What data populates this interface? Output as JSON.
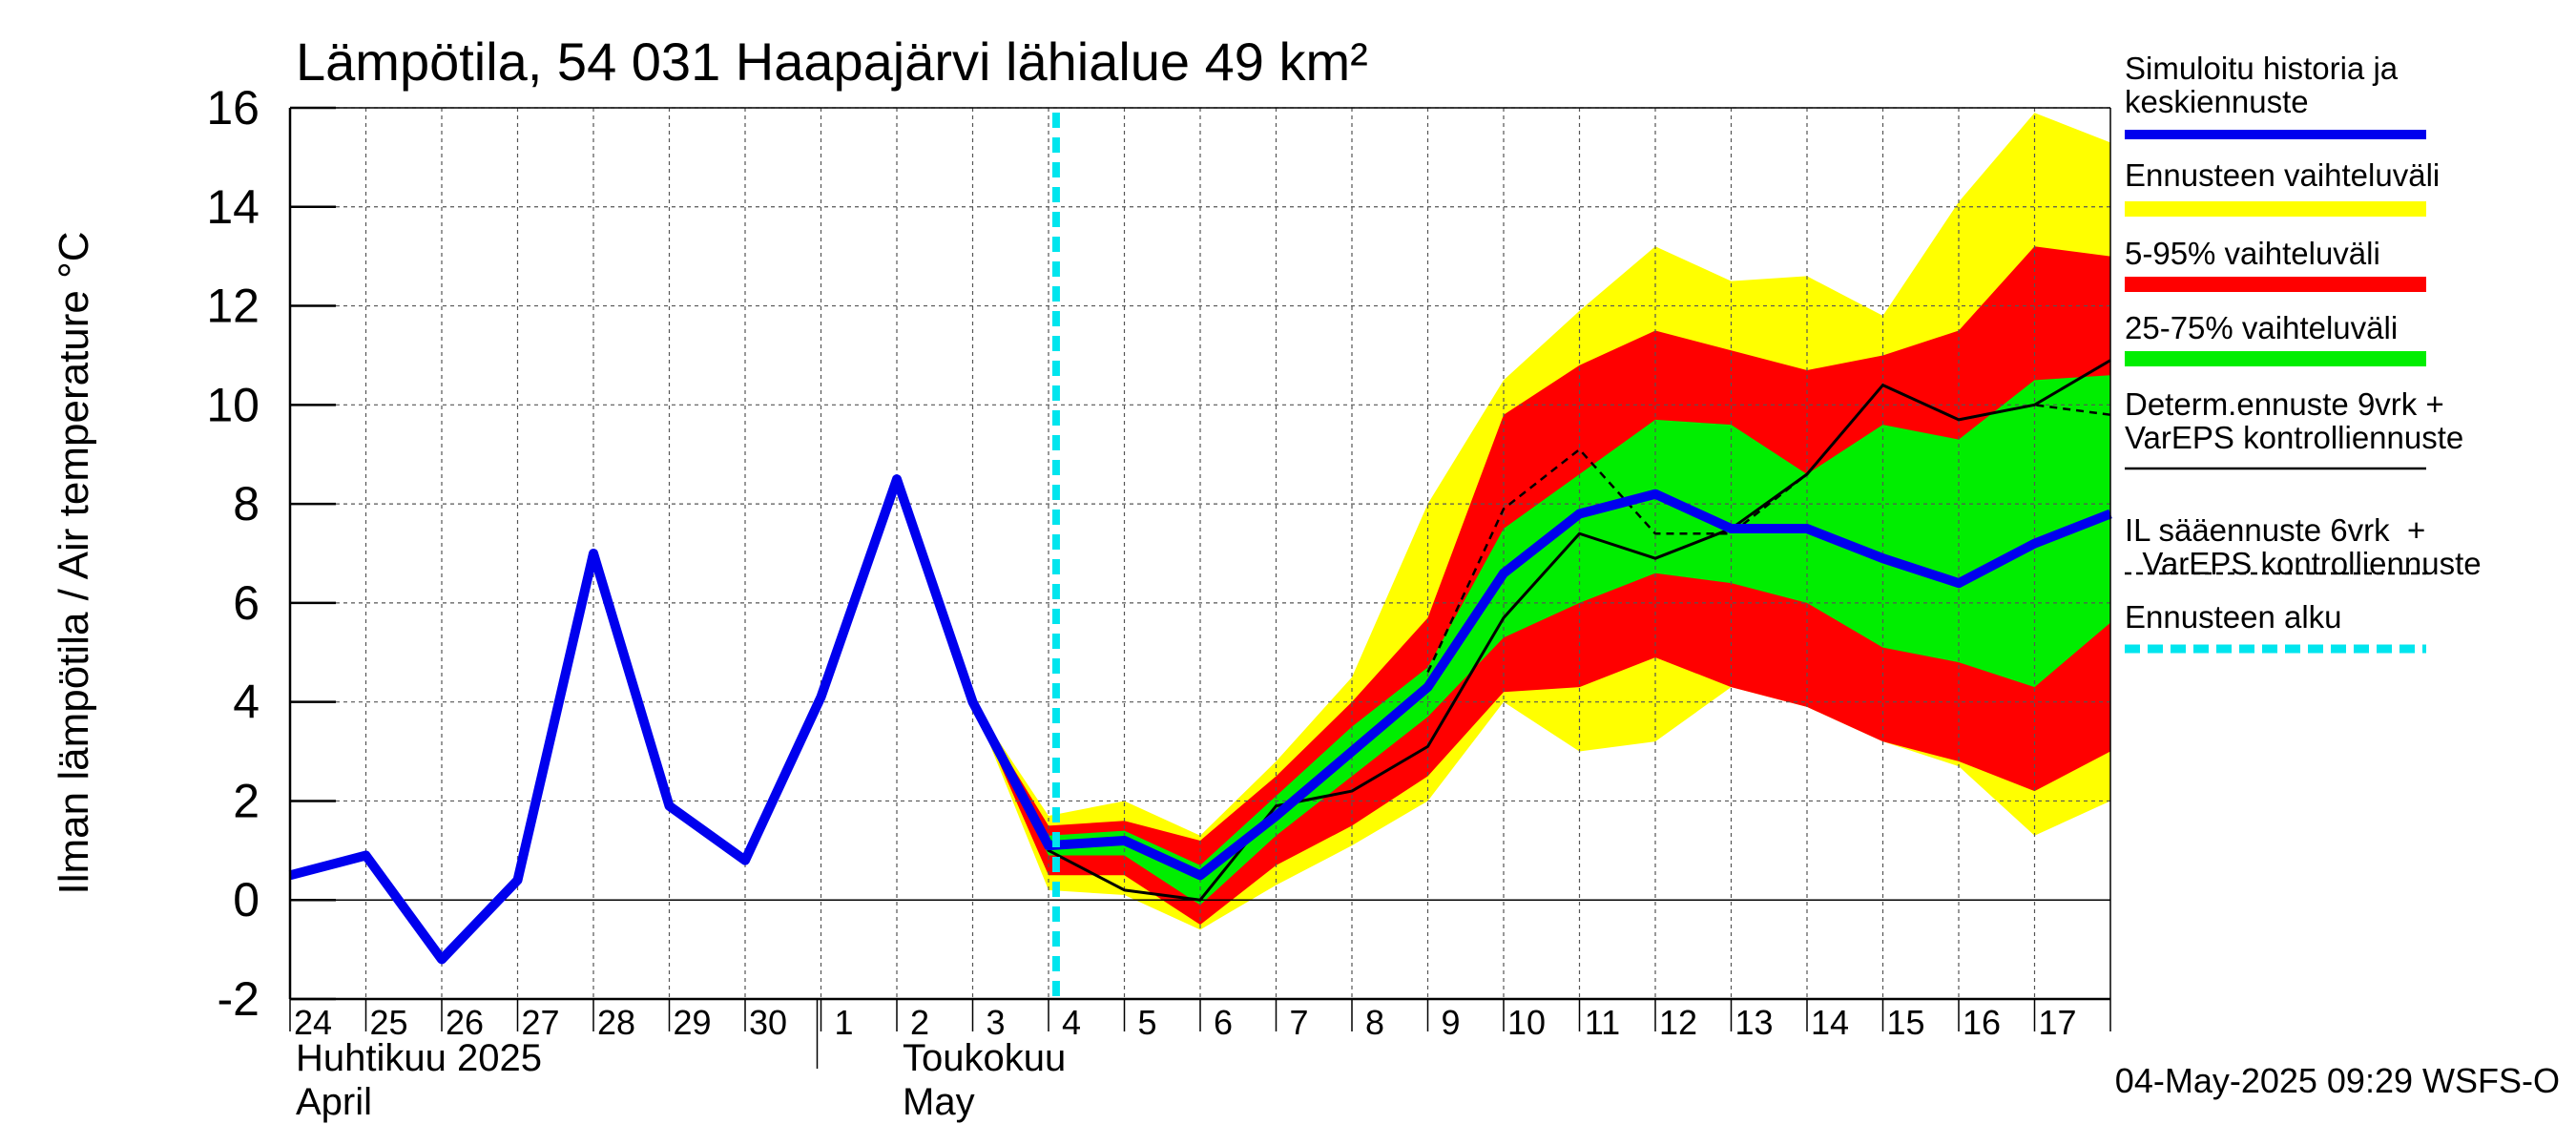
{
  "chart_data": {
    "type": "area",
    "title": "Lämpötila, 54 031 Haapajärvi lähialue 49 km²",
    "ylabel": "Ilman lämpötila / Air temperature   °C",
    "ylim": [
      -2,
      16
    ],
    "yticks": [
      -2,
      0,
      2,
      4,
      6,
      8,
      10,
      12,
      14,
      16
    ],
    "xlim": [
      0,
      24
    ],
    "x_tick_labels": [
      "24",
      "25",
      "26",
      "27",
      "28",
      "29",
      "30",
      "1",
      "2",
      "3",
      "4",
      "5",
      "6",
      "7",
      "8",
      "9",
      "10",
      "11",
      "12",
      "13",
      "14",
      "15",
      "16",
      "17"
    ],
    "month_labels": [
      {
        "fi": "Huhtikuu  2025",
        "en": "April",
        "at": 0
      },
      {
        "fi": "Toukokuu",
        "en": "May",
        "at": 8
      }
    ],
    "forecast_start": 10.1,
    "timestamp": "04-May-2025 09:29 WSFS-O",
    "grid": true,
    "legend_placement": "right",
    "legend": [
      {
        "label": "Simuloitu historia ja keskiennuste",
        "lines": [
          "Simuloitu historia ja",
          "keskiennuste"
        ],
        "color": "#0000ee",
        "style": "thick"
      },
      {
        "label": "Ennusteen vaihteluväli",
        "lines": [
          "Ennusteen vaihteluväli"
        ],
        "color": "#ffff00",
        "style": "band"
      },
      {
        "label": "5-95% vaihteluväli",
        "lines": [
          "5-95% vaihteluväli"
        ],
        "color": "#ff0000",
        "style": "band"
      },
      {
        "label": "25-75% vaihteluväli",
        "lines": [
          "25-75% vaihteluväli"
        ],
        "color": "#00ee00",
        "style": "band"
      },
      {
        "label": "Determ.ennuste 9vrk + VarEPS kontrolliennuste",
        "lines": [
          "Determ.ennuste 9vrk +",
          "VarEPS kontrolliennuste"
        ],
        "color": "#000000",
        "style": "thin"
      },
      {
        "label": "IL sääennuste 6vrk + VarEPS kontrolliennuste",
        "lines": [
          "IL sääennuste 6vrk  +",
          "  VarEPS kontrolliennuste"
        ],
        "color": "#000000",
        "style": "dashed"
      },
      {
        "label": "Ennusteen alku",
        "lines": [
          "Ennusteen alku"
        ],
        "color": "#00e5ee",
        "style": "cyan-dashed"
      }
    ],
    "bands": {
      "x": [
        9,
        10,
        11,
        12,
        13,
        14,
        15,
        16,
        17,
        18,
        19,
        20,
        21,
        22,
        23,
        24
      ],
      "full_min": [
        4.0,
        0.2,
        0.1,
        -0.6,
        0.3,
        1.1,
        2.0,
        4.0,
        3.0,
        3.2,
        4.3,
        3.9,
        3.2,
        2.7,
        1.3,
        2.0
      ],
      "full_max": [
        4.0,
        1.7,
        2.0,
        1.3,
        2.8,
        4.5,
        8.0,
        10.5,
        11.9,
        13.2,
        12.5,
        12.6,
        11.8,
        14.1,
        15.9,
        15.3
      ],
      "p5": [
        4.0,
        0.5,
        0.5,
        -0.5,
        0.7,
        1.5,
        2.5,
        4.2,
        4.3,
        4.9,
        4.3,
        3.9,
        3.2,
        2.8,
        2.2,
        3.0
      ],
      "p95": [
        4.0,
        1.5,
        1.6,
        1.2,
        2.5,
        4.0,
        5.7,
        9.8,
        10.8,
        11.5,
        11.1,
        10.7,
        11.0,
        11.5,
        13.2,
        13.0
      ],
      "p25": [
        4.0,
        0.9,
        0.9,
        -0.1,
        1.3,
        2.5,
        3.7,
        5.3,
        6.0,
        6.6,
        6.4,
        6.0,
        5.1,
        4.8,
        4.3,
        5.6
      ],
      "p75": [
        4.0,
        1.3,
        1.4,
        0.7,
        2.1,
        3.5,
        4.7,
        7.5,
        8.6,
        9.7,
        9.6,
        8.6,
        9.6,
        9.3,
        10.5,
        10.6
      ]
    },
    "series": [
      {
        "name": "Simuloitu historia ja keskiennuste",
        "x": [
          0,
          1,
          2,
          3,
          4,
          5,
          6,
          7,
          8,
          9,
          10,
          11,
          12,
          13,
          14,
          15,
          16,
          17,
          18,
          19,
          20,
          21,
          22,
          23,
          24
        ],
        "values": [
          0.5,
          0.9,
          -1.2,
          0.4,
          7.0,
          1.9,
          0.8,
          4.1,
          8.5,
          4.0,
          1.1,
          1.2,
          0.5,
          1.7,
          3.0,
          4.3,
          6.6,
          7.8,
          8.2,
          7.5,
          7.5,
          6.9,
          6.4,
          7.2,
          7.8
        ]
      },
      {
        "name": "Determ.ennuste 9vrk + VarEPS kontrolliennuste",
        "x": [
          8,
          9,
          10,
          11,
          12,
          13,
          14,
          15,
          16,
          17,
          18,
          19,
          20,
          21,
          22,
          23,
          24
        ],
        "values": [
          8.5,
          4.0,
          1.0,
          0.2,
          0.0,
          1.9,
          2.2,
          3.1,
          5.7,
          7.4,
          6.9,
          7.5,
          8.6,
          10.4,
          9.7,
          10.0,
          10.9
        ]
      },
      {
        "name": "IL sääennuste 6vrk + VarEPS kontrolliennuste",
        "x": [
          15,
          16,
          17,
          18,
          19,
          20,
          21,
          22,
          23,
          24
        ],
        "values": [
          4.6,
          7.9,
          9.1,
          7.4,
          7.4,
          8.6,
          10.4,
          9.7,
          10.0,
          9.8
        ]
      }
    ]
  }
}
